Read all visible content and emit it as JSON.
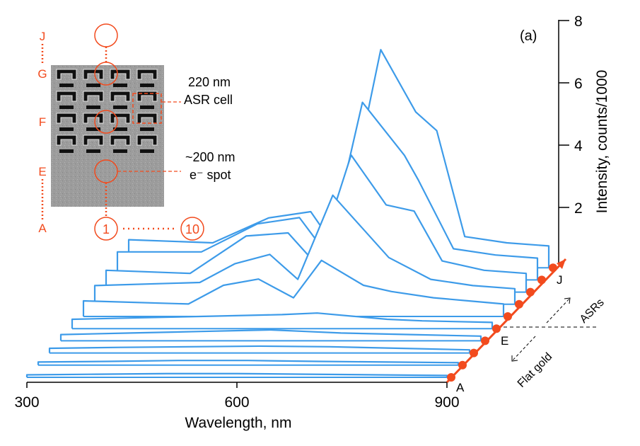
{
  "chart_data": {
    "type": "line",
    "panel_label": "(a)",
    "xlabel": "Wavelength, nm",
    "ylabel": "Intensity, counts/1000",
    "x_ticks": [
      "300",
      "600",
      "900"
    ],
    "y_ticks": [
      "2",
      "4",
      "6",
      "8"
    ],
    "xlim": [
      300,
      900
    ],
    "ylim": [
      0,
      8
    ],
    "position_labels": [
      "A",
      "E",
      "J"
    ],
    "direction_labels": {
      "asr": "ASRs",
      "gold": "Flat gold"
    },
    "series": [
      {
        "position": 1,
        "x": [
          300,
          400,
          500,
          600,
          700,
          800,
          900
        ],
        "y": [
          0.08,
          0.1,
          0.12,
          0.12,
          0.1,
          0.08,
          0.06
        ]
      },
      {
        "position": 2,
        "x": [
          300,
          400,
          500,
          600,
          700,
          800,
          900
        ],
        "y": [
          0.1,
          0.12,
          0.15,
          0.15,
          0.12,
          0.1,
          0.08
        ]
      },
      {
        "position": 3,
        "x": [
          300,
          400,
          500,
          600,
          700,
          800,
          900
        ],
        "y": [
          0.15,
          0.18,
          0.2,
          0.22,
          0.2,
          0.15,
          0.1
        ]
      },
      {
        "position": 4,
        "x": [
          300,
          400,
          500,
          600,
          650,
          700,
          800,
          900
        ],
        "y": [
          0.2,
          0.25,
          0.3,
          0.35,
          0.3,
          0.25,
          0.2,
          0.15
        ]
      },
      {
        "position": 5,
        "x": [
          300,
          400,
          500,
          600,
          650,
          700,
          750,
          800,
          900
        ],
        "y": [
          0.3,
          0.35,
          0.4,
          0.45,
          0.5,
          0.4,
          0.3,
          0.25,
          0.2
        ]
      },
      {
        "position": 6,
        "x": [
          300,
          450,
          500,
          550,
          600,
          640,
          700,
          740,
          800,
          850,
          900
        ],
        "y": [
          0.5,
          0.4,
          1.0,
          1.2,
          0.6,
          1.8,
          1.0,
          0.8,
          0.6,
          0.5,
          0.4
        ]
      },
      {
        "position": 7,
        "x": [
          300,
          450,
          500,
          550,
          590,
          640,
          680,
          720,
          780,
          840,
          900
        ],
        "y": [
          0.6,
          0.7,
          1.3,
          1.6,
          0.8,
          3.5,
          2.5,
          1.5,
          0.8,
          0.6,
          0.5
        ]
      },
      {
        "position": 8,
        "x": [
          300,
          420,
          500,
          560,
          600,
          650,
          700,
          740,
          780,
          840,
          900
        ],
        "y": [
          0.7,
          0.6,
          1.8,
          1.9,
          0.9,
          4.4,
          2.8,
          2.6,
          1.0,
          0.7,
          0.6
        ]
      },
      {
        "position": 9,
        "x": [
          300,
          420,
          500,
          560,
          600,
          650,
          710,
          730,
          780,
          840,
          900
        ],
        "y": [
          0.9,
          0.9,
          1.8,
          2.0,
          0.8,
          5.7,
          4.0,
          3.2,
          1.0,
          0.8,
          0.7
        ]
      },
      {
        "position": 10,
        "x": [
          300,
          420,
          500,
          560,
          600,
          660,
          710,
          740,
          780,
          840,
          900
        ],
        "y": [
          0.9,
          0.8,
          1.6,
          1.8,
          0.5,
          7.0,
          5.0,
          4.4,
          1.0,
          0.8,
          0.7
        ]
      }
    ]
  },
  "inset": {
    "row_labels": [
      "J",
      "G",
      "F",
      "E",
      "A"
    ],
    "column_start": "1",
    "column_end": "10",
    "cell_label_1": "220 nm",
    "cell_label_2": "ASR cell",
    "spot_label_1": "~200 nm",
    "spot_label_2": "e⁻ spot"
  },
  "colors": {
    "line": "#3d9be9",
    "marker": "#f24b1e",
    "axis": "#000000",
    "inset_bg": "#9a9a9a"
  }
}
